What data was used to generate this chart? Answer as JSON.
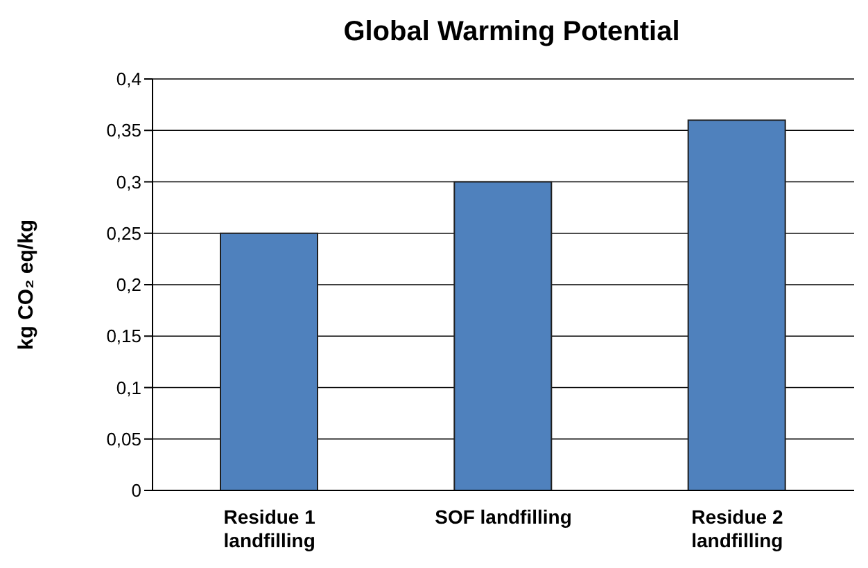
{
  "chart_data": {
    "type": "bar",
    "title": "Global Warming Potential",
    "ylabel": "kg CO₂ eq/kg",
    "categories": [
      "Residue 1 landfilling",
      "SOF landfilling",
      "Residue 2 landfilling"
    ],
    "values": [
      0.25,
      0.3,
      0.36
    ],
    "color": "#4f81bd",
    "ylim": [
      0,
      0.4
    ],
    "yticks": [
      {
        "value": 0,
        "label": "0"
      },
      {
        "value": 0.05,
        "label": "0,05"
      },
      {
        "value": 0.1,
        "label": "0,1"
      },
      {
        "value": 0.15,
        "label": "0,15"
      },
      {
        "value": 0.2,
        "label": "0,2"
      },
      {
        "value": 0.25,
        "label": "0,25"
      },
      {
        "value": 0.3,
        "label": "0,3"
      },
      {
        "value": 0.35,
        "label": "0,35"
      },
      {
        "value": 0.4,
        "label": "0,4"
      }
    ],
    "grid": "y",
    "legend": false
  }
}
